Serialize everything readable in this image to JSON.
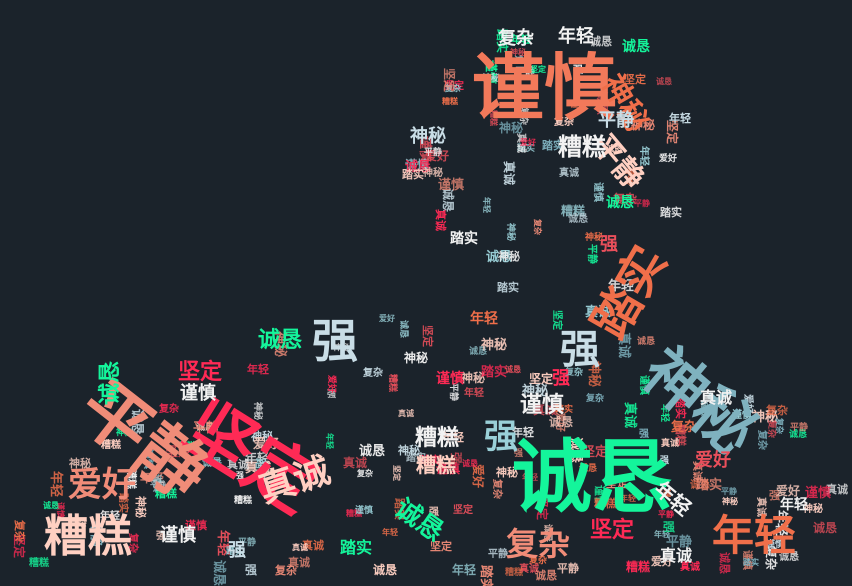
{
  "wordcloud": {
    "background": "#1b232b",
    "palette": [
      "#f06f4a",
      "#ff2a55",
      "#14f59b",
      "#c9dde6",
      "#9ad0d8",
      "#f08c78",
      "#e94f5b",
      "#ffd0c2",
      "#7fb2bf",
      "#f2f2f2"
    ],
    "words": [
      {
        "text": "谨慎",
        "color": "#f2795a"
      },
      {
        "text": "诚恳",
        "color": "#14f59b"
      },
      {
        "text": "坚定",
        "color": "#ff2a55"
      },
      {
        "text": "平静",
        "color": "#f08c78"
      },
      {
        "text": "神秘",
        "color": "#7fb2bf"
      },
      {
        "text": "踏实",
        "color": "#f06f4a"
      },
      {
        "text": "糟糕",
        "color": "#ffd0c2"
      },
      {
        "text": "年轻",
        "color": "#f06f4a"
      },
      {
        "text": "强",
        "color": "#c9dde6"
      },
      {
        "text": "真诚",
        "color": "#ffd0c2"
      },
      {
        "text": "爱好",
        "color": "#f08c78"
      },
      {
        "text": "复杂",
        "color": "#f08c78"
      },
      {
        "text": "平静",
        "color": "#ffd0c2"
      },
      {
        "text": "神秘",
        "color": "#f06f4a"
      },
      {
        "text": "强",
        "color": "#c9dde6"
      },
      {
        "text": "强",
        "color": "#9ad0d8"
      },
      {
        "text": "诚恳",
        "color": "#14f59b"
      },
      {
        "text": "坚定",
        "color": "#ff2a55"
      },
      {
        "text": "糟糕",
        "color": "#f2f2f2"
      },
      {
        "text": "坚定",
        "color": "#ff2a55"
      },
      {
        "text": "诚恳",
        "color": "#14f59b"
      },
      {
        "text": "谨慎",
        "color": "#f2f2f2"
      },
      {
        "text": "诚恳",
        "color": "#14f59b"
      },
      {
        "text": "糟糕",
        "color": "#f2f2f2"
      },
      {
        "text": "糟糕",
        "color": "#ffd0c2"
      },
      {
        "text": "谨慎",
        "color": "#f2f2f2"
      },
      {
        "text": "年轻",
        "color": "#f2f2f2"
      },
      {
        "text": "爱好",
        "color": "#e94f5b"
      },
      {
        "text": "强",
        "color": "#ff2a55"
      },
      {
        "text": "强",
        "color": "#c9dde6"
      },
      {
        "text": "强",
        "color": "#e94f5b"
      },
      {
        "text": "神秘",
        "color": "#c9dde6"
      },
      {
        "text": "平静",
        "color": "#c9dde6"
      },
      {
        "text": "踏实",
        "color": "#f2f2f2"
      },
      {
        "text": "诚恳",
        "color": "#14f59b"
      },
      {
        "text": "复杂",
        "color": "#f2f2f2"
      },
      {
        "text": "年轻",
        "color": "#f2f2f2"
      },
      {
        "text": "诚恳",
        "color": "#14f59b"
      },
      {
        "text": "谨慎",
        "color": "#ff2a55"
      },
      {
        "text": "年轻",
        "color": "#f06f4a"
      },
      {
        "text": "真诚",
        "color": "#f2f2f2"
      },
      {
        "text": "谨慎",
        "color": "#f2f2f2"
      },
      {
        "text": "踏实",
        "color": "#14f59b"
      },
      {
        "text": "真诚",
        "color": "#f2f2f2"
      },
      {
        "text": "年轻",
        "color": "#f2f2f2"
      }
    ],
    "filler_words": [
      "谨慎",
      "诚恳",
      "坚定",
      "平静",
      "神秘",
      "踏实",
      "糟糕",
      "年轻",
      "强",
      "真诚",
      "爱好",
      "复杂"
    ]
  }
}
